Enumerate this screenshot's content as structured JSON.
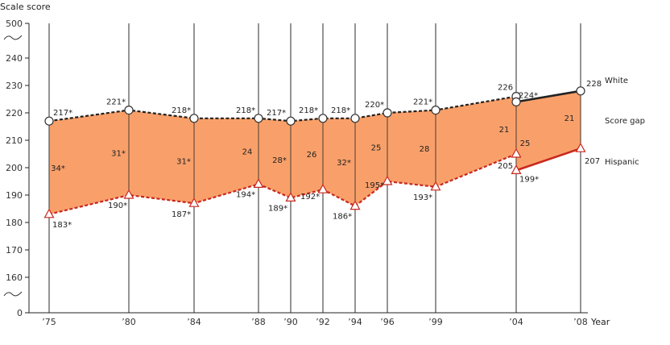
{
  "chart_data": {
    "type": "line",
    "ylabel": "Scale score",
    "xlabel": "Year",
    "x_ticks": [
      "’75",
      "’80",
      "’84",
      "’88",
      "’90",
      "’92",
      "’94",
      "’96",
      "’99",
      "’04",
      "’08"
    ],
    "y_ticks": [
      {
        "value": 500,
        "label": "500"
      },
      {
        "value": 240,
        "label": "240"
      },
      {
        "value": 230,
        "label": "230"
      },
      {
        "value": 220,
        "label": "220"
      },
      {
        "value": 210,
        "label": "210"
      },
      {
        "value": 200,
        "label": "200"
      },
      {
        "value": 190,
        "label": "190"
      },
      {
        "value": 180,
        "label": "180"
      },
      {
        "value": 170,
        "label": "170"
      },
      {
        "value": 160,
        "label": "160"
      },
      {
        "value": 0,
        "label": "0"
      }
    ],
    "ylim_broken": [
      150,
      245
    ],
    "series": [
      {
        "name": "White",
        "marker": "circle",
        "dashed_values": [
          217,
          221,
          218,
          218,
          217,
          218,
          218,
          220,
          221,
          226
        ],
        "solid_values": [
          224,
          228
        ],
        "labels": [
          "217*",
          "221*",
          "218*",
          "218*",
          "217*",
          "218*",
          "218*",
          "220*",
          "221*",
          "226",
          "224*",
          "228"
        ]
      },
      {
        "name": "Hispanic",
        "marker": "triangle",
        "dashed_values": [
          183,
          190,
          187,
          194,
          189,
          192,
          186,
          195,
          193,
          205
        ],
        "solid_values": [
          199,
          207
        ],
        "labels": [
          "183*",
          "190*",
          "187*",
          "194*",
          "189*",
          "192*",
          "186*",
          "195*",
          "193*",
          "205",
          "199*",
          "207"
        ]
      }
    ],
    "score_gap_label": "Score gap",
    "gap_labels": [
      "34*",
      "31*",
      "31*",
      "24",
      "28*",
      "26",
      "32*",
      "25",
      "28",
      "21",
      "25",
      "21"
    ],
    "colors": {
      "gap_fill": "#f9a06a",
      "white_line": "#222222",
      "hispanic_line": "#c8281e",
      "score_gap_text": "#f39050"
    }
  }
}
